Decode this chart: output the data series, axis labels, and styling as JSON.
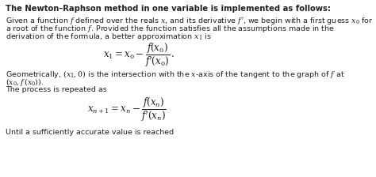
{
  "title_bold": "The Newton–Raphson method in one variable is implemented as follows:",
  "bg_color": "#ffffff",
  "text_color": "#231f20",
  "font_size_body": 6.8,
  "font_size_title": 7.2,
  "font_size_formula": 8.5
}
